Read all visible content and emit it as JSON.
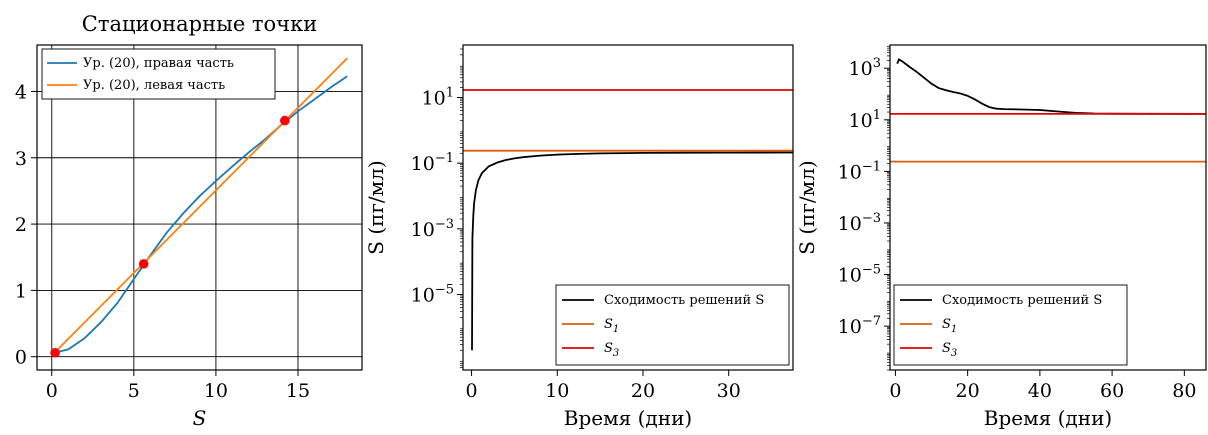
{
  "chart_data": [
    {
      "type": "line",
      "title": "Стационарные точки",
      "xlabel": "S",
      "ylabel": "",
      "xlim": [
        -0.9,
        18.9
      ],
      "ylim": [
        -0.2,
        4.7
      ],
      "xticks": [
        "0",
        "5",
        "10",
        "15"
      ],
      "yticks": [
        "0",
        "1",
        "2",
        "3",
        "4"
      ],
      "grid": true,
      "legend": "upper-left",
      "series": [
        {
          "name": "Ур. (20), правая часть",
          "color": "#1f77b4",
          "x": [
            0,
            1,
            2,
            3,
            4,
            5,
            6,
            7,
            8,
            9,
            10,
            11,
            12,
            13,
            14,
            15,
            16,
            17,
            18
          ],
          "y": [
            0.05,
            0.11,
            0.28,
            0.52,
            0.81,
            1.17,
            1.53,
            1.87,
            2.16,
            2.42,
            2.65,
            2.87,
            3.08,
            3.28,
            3.5,
            3.7,
            3.88,
            4.06,
            4.23
          ]
        },
        {
          "name": "Ур. (20), левая часть",
          "color": "#ff7f0e",
          "x": [
            0,
            18
          ],
          "y": [
            0.02,
            4.5
          ]
        }
      ],
      "points": {
        "color": "#ff0000",
        "x": [
          0.2,
          5.6,
          14.2
        ],
        "y": [
          0.06,
          1.4,
          3.56
        ]
      }
    },
    {
      "type": "line",
      "title": "",
      "xlabel": "Время (дни)",
      "ylabel": "S (пг/мл)",
      "xlim": [
        -1,
        37.5
      ],
      "ylim_log10": [
        -7.3,
        2.6
      ],
      "xticks": [
        "0",
        "10",
        "20",
        "30"
      ],
      "yticks": [
        "10^1",
        "10^-1",
        "10^-3",
        "10^-5"
      ],
      "grid": false,
      "legend": "lower-right",
      "series": [
        {
          "name": "Сходимость решений S",
          "color": "#000000",
          "x": [
            0.05,
            0.1,
            0.2,
            0.3,
            0.5,
            0.8,
            1.2,
            2,
            3,
            4,
            5,
            6,
            8,
            10,
            12,
            15,
            20,
            25,
            30,
            37.5
          ],
          "y": [
            2e-07,
            0.0005,
            0.0025,
            0.006,
            0.015,
            0.03,
            0.05,
            0.08,
            0.105,
            0.125,
            0.14,
            0.152,
            0.17,
            0.182,
            0.19,
            0.198,
            0.205,
            0.208,
            0.21,
            0.212
          ]
        },
        {
          "name": "S_1",
          "color": "#d95f0e",
          "x": [
            -1,
            37.5
          ],
          "y": [
            0.24,
            0.24
          ]
        },
        {
          "name": "S_3",
          "color": "#e60000",
          "x": [
            -1,
            37.5
          ],
          "y": [
            17,
            17
          ]
        }
      ]
    },
    {
      "type": "line",
      "title": "",
      "xlabel": "Время (дни)",
      "ylabel": "S (пг/мл)",
      "xlim": [
        -1.5,
        86
      ],
      "ylim_log10": [
        -8.7,
        3.9
      ],
      "xticks": [
        "0",
        "20",
        "40",
        "60",
        "80"
      ],
      "yticks": [
        "10^3",
        "10^1",
        "10^-1",
        "10^-3",
        "10^-5",
        "10^-7"
      ],
      "grid": false,
      "legend": "lower-left",
      "series": [
        {
          "name": "Сходимость решений S",
          "color": "#000000",
          "x": [
            0.5,
            1,
            2,
            4,
            6,
            8,
            10,
            12,
            14,
            16,
            18,
            20,
            22,
            24,
            26,
            28,
            30,
            35,
            40,
            45,
            50,
            55,
            60,
            70,
            86
          ],
          "y": [
            1500,
            2200,
            1800,
            1100,
            700,
            420,
            250,
            170,
            140,
            120,
            105,
            85,
            62,
            42,
            31,
            27,
            26,
            25,
            24,
            21,
            18.5,
            17.5,
            17.2,
            17.05,
            17
          ]
        },
        {
          "name": "S_1",
          "color": "#d95f0e",
          "x": [
            -1.5,
            86
          ],
          "y": [
            0.24,
            0.24
          ]
        },
        {
          "name": "S_3",
          "color": "#e60000",
          "x": [
            -1.5,
            86
          ],
          "y": [
            17,
            17
          ]
        }
      ]
    }
  ]
}
